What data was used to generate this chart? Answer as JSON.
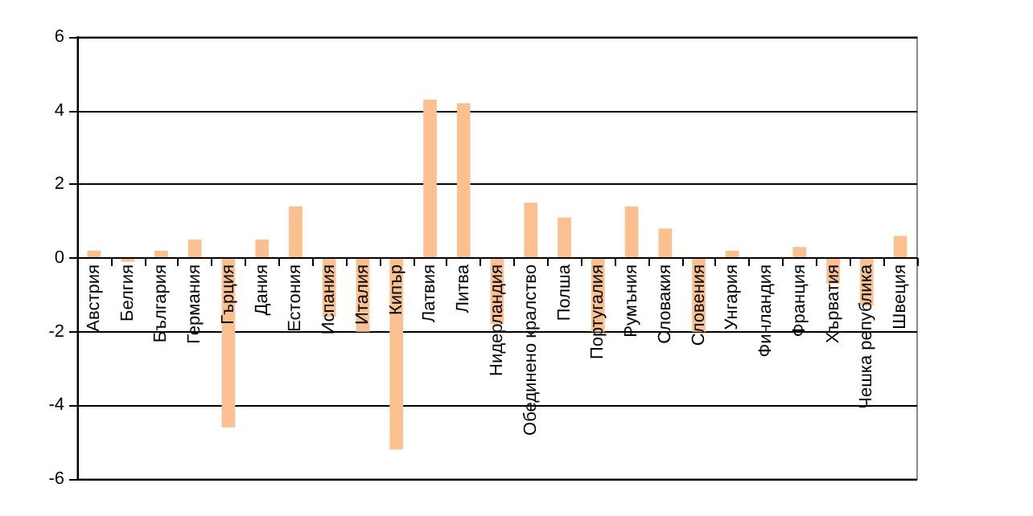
{
  "chart_data": {
    "type": "bar",
    "categories": [
      "Австрия",
      "Белгия",
      "България",
      "Германия",
      "Гърция",
      "Дания",
      "Естония",
      "Испания",
      "Италия",
      "Кипър",
      "Латвия",
      "Литва",
      "Нидерландия",
      "Обединено кралство",
      "Полша",
      "Португалия",
      "Румъния",
      "Словакия",
      "Словения",
      "Унгария",
      "Финландия",
      "Франция",
      "Хърватия",
      "Чешка република",
      "Швеция"
    ],
    "values": [
      0.2,
      -0.1,
      0.2,
      0.5,
      -4.6,
      0.5,
      1.4,
      -1.6,
      -2.0,
      -5.2,
      4.3,
      4.2,
      -1.8,
      1.5,
      1.1,
      -2.0,
      1.4,
      0.8,
      -2.0,
      0.2,
      0,
      0.3,
      -0.7,
      -1.3,
      0.6
    ],
    "color": "#fac090",
    "ylim": [
      -6,
      6
    ],
    "yticks": [
      -6,
      -4,
      -2,
      0,
      2,
      4,
      6
    ],
    "grid": "y"
  }
}
